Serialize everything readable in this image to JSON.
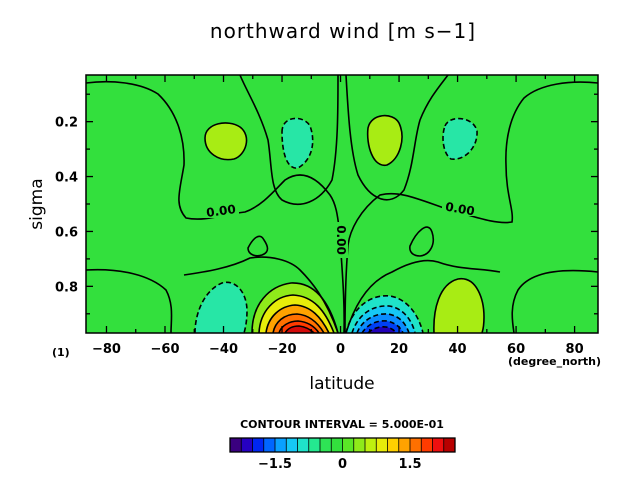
{
  "chart_data": {
    "type": "heatmap",
    "title": "northward wind [m s−1]",
    "xlabel": "latitude",
    "ylabel": "sigma",
    "x_unit_label": "(degree_north)",
    "corner_label": "(1)",
    "xlim": [
      -87,
      88
    ],
    "ylim": [
      0.97,
      0.03
    ],
    "x_ticks": [
      -80,
      -60,
      -40,
      -20,
      0,
      20,
      40,
      60,
      80
    ],
    "x_tick_labels": [
      "−80",
      "−60",
      "−40",
      "−20",
      "0",
      "20",
      "40",
      "60",
      "80"
    ],
    "y_ticks": [
      0.2,
      0.4,
      0.6,
      0.8
    ],
    "y_tick_labels": [
      "0.2",
      "0.4",
      "0.6",
      "0.8"
    ],
    "contour_interval_text": "CONTOUR INTERVAL = 5.000E-01",
    "contour_labels": [
      "0.00",
      "0.00",
      "0.00"
    ],
    "background_color": "#33e03d",
    "colorbar": {
      "min": -2.5,
      "max": 2.5,
      "tick_values": [
        -1.5,
        0,
        1.5
      ],
      "tick_labels": [
        "−1.5",
        "0",
        "1.5"
      ],
      "colors": [
        "#3a007f",
        "#2600c2",
        "#0026f2",
        "#0066ff",
        "#0aa0ff",
        "#16c8f6",
        "#1fe3c9",
        "#24e890",
        "#2ee355",
        "#33e03d",
        "#5ae627",
        "#8fea1a",
        "#bff00f",
        "#e8ec0a",
        "#ffd000",
        "#ffa200",
        "#ff7000",
        "#ff3b00",
        "#ee0f0f",
        "#b80000"
      ]
    },
    "features": [
      {
        "name": "mid-lat-upper-positive",
        "lat": -40,
        "sigma": 0.25,
        "value": 0.5
      },
      {
        "name": "mid-lat-upper-negative",
        "lat": -23,
        "sigma": 0.28,
        "value": -0.5
      },
      {
        "name": "nh-upper-positive",
        "lat": 14,
        "sigma": 0.25,
        "value": 0.5
      },
      {
        "name": "nh-upper-negative",
        "lat": 33,
        "sigma": 0.27,
        "value": -0.5
      },
      {
        "name": "sh-lower-negative",
        "lat": -42,
        "sigma": 0.88,
        "value": -0.5
      },
      {
        "name": "sh-surface-max",
        "lat": -12,
        "sigma": 0.95,
        "value": 2.4
      },
      {
        "name": "nh-surface-min",
        "lat": 12,
        "sigma": 0.95,
        "value": -2.0
      },
      {
        "name": "nh-lower-positive",
        "lat": 43,
        "sigma": 0.88,
        "value": 0.5
      }
    ]
  }
}
